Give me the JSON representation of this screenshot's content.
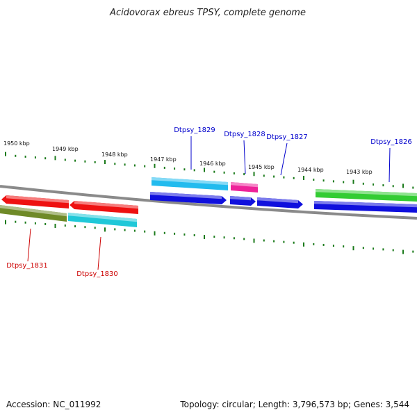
{
  "title": "Acidovorax ebreus TPSY, complete genome",
  "footer": {
    "accession": "Accession: NC_011992",
    "summary": "Topology: circular; Length: 3,796,573 bp; Genes: 3,544"
  },
  "ticks": {
    "labels": [
      "1950 kbp",
      "1949 kbp",
      "1948 kbp",
      "1947 kbp",
      "1946 kbp",
      "1945 kbp",
      "1944 kbp",
      "1943 kbp"
    ]
  },
  "colors": {
    "tick": "#1a7a1a",
    "backbone": "#8a8a8a",
    "label_forward": "#0000cc",
    "label_reverse": "#cc0000",
    "red": "#ee1111",
    "olive": "#6f8a28",
    "cyan": "#20c8d8",
    "sky": "#22bbee",
    "magenta": "#ee2299",
    "blue": "#1010dd",
    "green": "#33cc33"
  },
  "genes": [
    {
      "label": "Dtpsy_1826",
      "strand": "forward"
    },
    {
      "label": "Dtpsy_1827",
      "strand": "forward"
    },
    {
      "label": "Dtpsy_1828",
      "strand": "forward"
    },
    {
      "label": "Dtpsy_1829",
      "strand": "forward"
    },
    {
      "label": "Dtpsy_1830",
      "strand": "reverse"
    },
    {
      "label": "Dtpsy_1831",
      "strand": "reverse"
    }
  ]
}
